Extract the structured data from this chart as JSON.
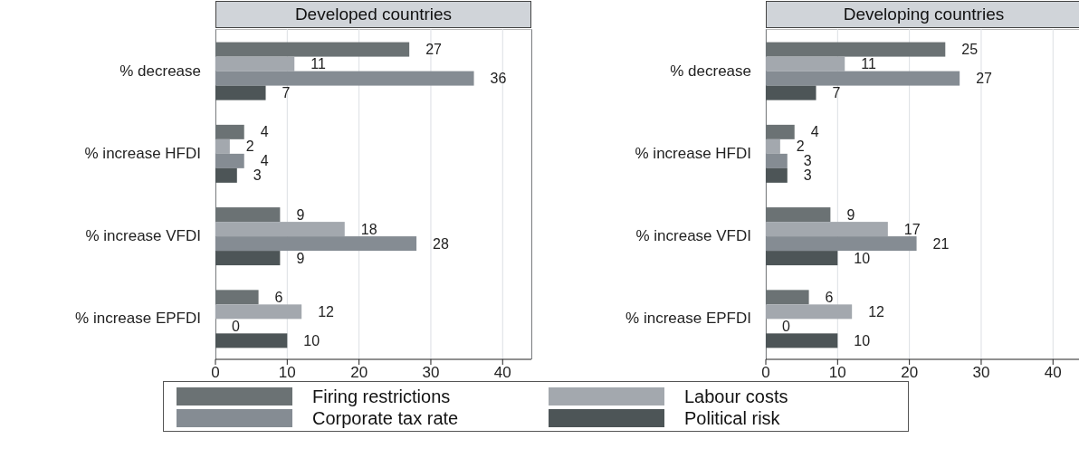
{
  "chart_data": [
    {
      "type": "bar",
      "orientation": "horizontal",
      "title": "Developed countries",
      "categories": [
        "% decrease",
        "% increase HFDI",
        "% increase VFDI",
        "% increase EPFDI"
      ],
      "xlim": [
        0,
        44
      ],
      "xticks": [
        0,
        10,
        20,
        30,
        40
      ],
      "grid": "x",
      "data_labels": true,
      "legend": "bottom",
      "series": [
        {
          "name": "Firing restrictions",
          "color": "#6b7274",
          "values": [
            27,
            4,
            9,
            6
          ]
        },
        {
          "name": "Labour costs",
          "color": "#a3a8ae",
          "values": [
            11,
            2,
            18,
            12
          ]
        },
        {
          "name": "Corporate tax rate",
          "color": "#858c93",
          "values": [
            36,
            4,
            28,
            0
          ]
        },
        {
          "name": "Political risk",
          "color": "#4d5557",
          "values": [
            7,
            3,
            9,
            10
          ]
        }
      ]
    },
    {
      "type": "bar",
      "orientation": "horizontal",
      "title": "Developing countries",
      "categories": [
        "% decrease",
        "% increase HFDI",
        "% increase VFDI",
        "% increase EPFDI"
      ],
      "xlim": [
        0,
        44
      ],
      "xticks": [
        0,
        10,
        20,
        30,
        40
      ],
      "grid": "x",
      "data_labels": true,
      "series": [
        {
          "color": "#6b7274",
          "values": [
            25,
            4,
            9,
            6
          ]
        },
        {
          "color": "#a3a8ae",
          "values": [
            11,
            2,
            17,
            12
          ]
        },
        {
          "color": "#858c93",
          "values": [
            27,
            3,
            21,
            0
          ]
        },
        {
          "color": "#4d5557",
          "values": [
            7,
            3,
            10,
            10
          ]
        }
      ]
    }
  ]
}
